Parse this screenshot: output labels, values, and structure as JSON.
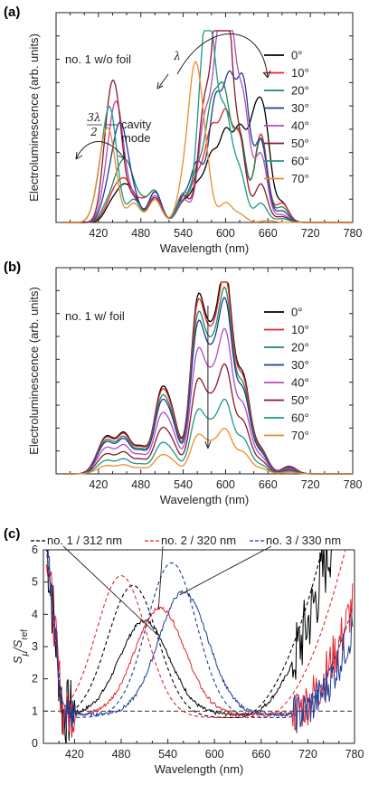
{
  "chart_data": [
    {
      "panel": "(a)",
      "type": "line",
      "xlabel": "Wavelength (nm)",
      "ylabel": "Electroluminescence (arb. units)",
      "xlim": [
        360,
        780
      ],
      "xticks": [
        420,
        480,
        540,
        600,
        660,
        720,
        780
      ],
      "annotations": [
        "no. 1 w/o foil",
        "λ",
        "3λ",
        "2",
        "cavity",
        "mode"
      ],
      "series": [
        {
          "name": "0°",
          "color": "#000000",
          "peaks": [
            [
              432,
              0.02
            ],
            [
              440,
              0.08
            ],
            [
              455,
              0.15
            ],
            [
              470,
              0.12
            ],
            [
              500,
              0.16
            ],
            [
              540,
              0.1
            ],
            [
              560,
              0.18
            ],
            [
              580,
              0.32
            ],
            [
              600,
              0.43
            ],
            [
              620,
              0.44
            ],
            [
              640,
              0.44
            ],
            [
              655,
              0.48
            ],
            [
              680,
              0.1
            ]
          ]
        },
        {
          "name": "10°",
          "color": "#e8232c",
          "peaks": [
            [
              432,
              0.05
            ],
            [
              445,
              0.14
            ],
            [
              460,
              0.18
            ],
            [
              480,
              0.1
            ],
            [
              500,
              0.16
            ],
            [
              540,
              0.1
            ],
            [
              560,
              0.22
            ],
            [
              580,
              0.45
            ],
            [
              600,
              0.52
            ],
            [
              620,
              0.42
            ],
            [
              650,
              0.46
            ],
            [
              680,
              0.1
            ]
          ]
        },
        {
          "name": "20°",
          "color": "#1e8a58",
          "peaks": [
            [
              432,
              0.08
            ],
            [
              448,
              0.2
            ],
            [
              462,
              0.24
            ],
            [
              480,
              0.1
            ],
            [
              500,
              0.16
            ],
            [
              540,
              0.1
            ],
            [
              560,
              0.25
            ],
            [
              580,
              0.55
            ],
            [
              598,
              0.62
            ],
            [
              620,
              0.45
            ],
            [
              650,
              0.44
            ],
            [
              680,
              0.08
            ]
          ]
        },
        {
          "name": "30°",
          "color": "#1e3c96",
          "peaks": [
            [
              432,
              0.12
            ],
            [
              445,
              0.26
            ],
            [
              455,
              0.32
            ],
            [
              470,
              0.12
            ],
            [
              500,
              0.16
            ],
            [
              540,
              0.12
            ],
            [
              560,
              0.3
            ],
            [
              585,
              0.6
            ],
            [
              605,
              0.68
            ],
            [
              625,
              0.7
            ],
            [
              650,
              0.42
            ],
            [
              680,
              0.06
            ]
          ]
        },
        {
          "name": "40°",
          "color": "#b44bbf",
          "peaks": [
            [
              432,
              0.16
            ],
            [
              442,
              0.3
            ],
            [
              450,
              0.34
            ],
            [
              470,
              0.12
            ],
            [
              500,
              0.14
            ],
            [
              540,
              0.12
            ],
            [
              570,
              0.5
            ],
            [
              590,
              0.8
            ],
            [
              605,
              0.96
            ],
            [
              625,
              0.6
            ],
            [
              650,
              0.35
            ],
            [
              680,
              0.04
            ]
          ]
        },
        {
          "name": "50°",
          "color": "#8b1a2a",
          "peaks": [
            [
              432,
              0.2
            ],
            [
              438,
              0.36
            ],
            [
              448,
              0.38
            ],
            [
              470,
              0.12
            ],
            [
              500,
              0.13
            ],
            [
              540,
              0.14
            ],
            [
              570,
              0.58
            ],
            [
              590,
              0.92
            ],
            [
              600,
              0.98
            ],
            [
              620,
              0.4
            ],
            [
              650,
              0.2
            ],
            [
              680,
              0.03
            ]
          ]
        },
        {
          "name": "60°",
          "color": "#1a9a8a",
          "peaks": [
            [
              420,
              0.12
            ],
            [
              432,
              0.3
            ],
            [
              440,
              0.34
            ],
            [
              470,
              0.12
            ],
            [
              500,
              0.12
            ],
            [
              540,
              0.15
            ],
            [
              568,
              0.68
            ],
            [
              580,
              0.72
            ],
            [
              600,
              0.52
            ],
            [
              620,
              0.25
            ],
            [
              650,
              0.1
            ],
            [
              680,
              0.02
            ]
          ]
        },
        {
          "name": "70°",
          "color": "#f08a2a",
          "peaks": [
            [
              420,
              0.1
            ],
            [
              430,
              0.3
            ],
            [
              440,
              0.24
            ],
            [
              470,
              0.1
            ],
            [
              500,
              0.12
            ],
            [
              540,
              0.18
            ],
            [
              556,
              0.7
            ],
            [
              570,
              0.32
            ],
            [
              600,
              0.1
            ],
            [
              620,
              0.04
            ],
            [
              660,
              0.01
            ]
          ]
        }
      ]
    },
    {
      "panel": "(b)",
      "type": "line",
      "xlabel": "Wavelength (nm)",
      "ylabel": "Electroluminescence (arb. units)",
      "xlim": [
        360,
        780
      ],
      "xticks": [
        420,
        480,
        540,
        600,
        660,
        720,
        780
      ],
      "annotations": [
        "no. 1 w/ foil"
      ],
      "series": [
        {
          "name": "0°",
          "color": "#000000",
          "scale": 1.0
        },
        {
          "name": "10°",
          "color": "#e8232c",
          "scale": 0.97
        },
        {
          "name": "20°",
          "color": "#1e8a58",
          "scale": 0.9
        },
        {
          "name": "30°",
          "color": "#1e3c96",
          "scale": 0.85
        },
        {
          "name": "40°",
          "color": "#b44bbf",
          "scale": 0.7
        },
        {
          "name": "50°",
          "color": "#8b1a2a",
          "scale": 0.53
        },
        {
          "name": "60°",
          "color": "#1a9a8a",
          "scale": 0.36
        },
        {
          "name": "70°",
          "color": "#f08a2a",
          "scale": 0.22
        }
      ]
    },
    {
      "panel": "(c)",
      "type": "line",
      "xlabel": "Wavelength (nm)",
      "ylabel": "Sμ/Sref",
      "xlim": [
        380,
        780
      ],
      "ylim": [
        0,
        6
      ],
      "xticks": [
        420,
        480,
        540,
        600,
        660,
        720,
        780
      ],
      "yticks": [
        0,
        1,
        2,
        3,
        4,
        5,
        6
      ],
      "reference_line": 1,
      "series": [
        {
          "name": "no. 1 / 312 nm",
          "color": "#000000",
          "solid_peak": [
            510,
            3.8
          ],
          "dashed_peak": [
            495,
            4.9
          ]
        },
        {
          "name": "no. 2 / 320 nm",
          "color": "#e8232c",
          "solid_peak": [
            530,
            4.2
          ],
          "dashed_peak": [
            480,
            5.2
          ]
        },
        {
          "name": "no. 3 / 330 nm",
          "color": "#1e3c96",
          "solid_peak": [
            560,
            4.7
          ],
          "dashed_peak": [
            545,
            5.6
          ]
        }
      ]
    }
  ],
  "labels": {
    "panel_a": "(a)",
    "panel_b": "(b)",
    "panel_c": "(c)",
    "annot_a": "no. 1 w/o foil",
    "annot_b": "no. 1 w/ foil",
    "lambda": "λ",
    "three_lambda_num": "3λ",
    "three_lambda_den": "2",
    "cavity": "cavity",
    "mode": "mode",
    "ylabel_ab": "Electroluminescence (arb. units)",
    "ylabel_c_main": "S",
    "ylabel_c_sub1": "μ",
    "ylabel_c_slash": "/S",
    "ylabel_c_sub2": "ref",
    "xlabel": "Wavelength (nm)"
  }
}
